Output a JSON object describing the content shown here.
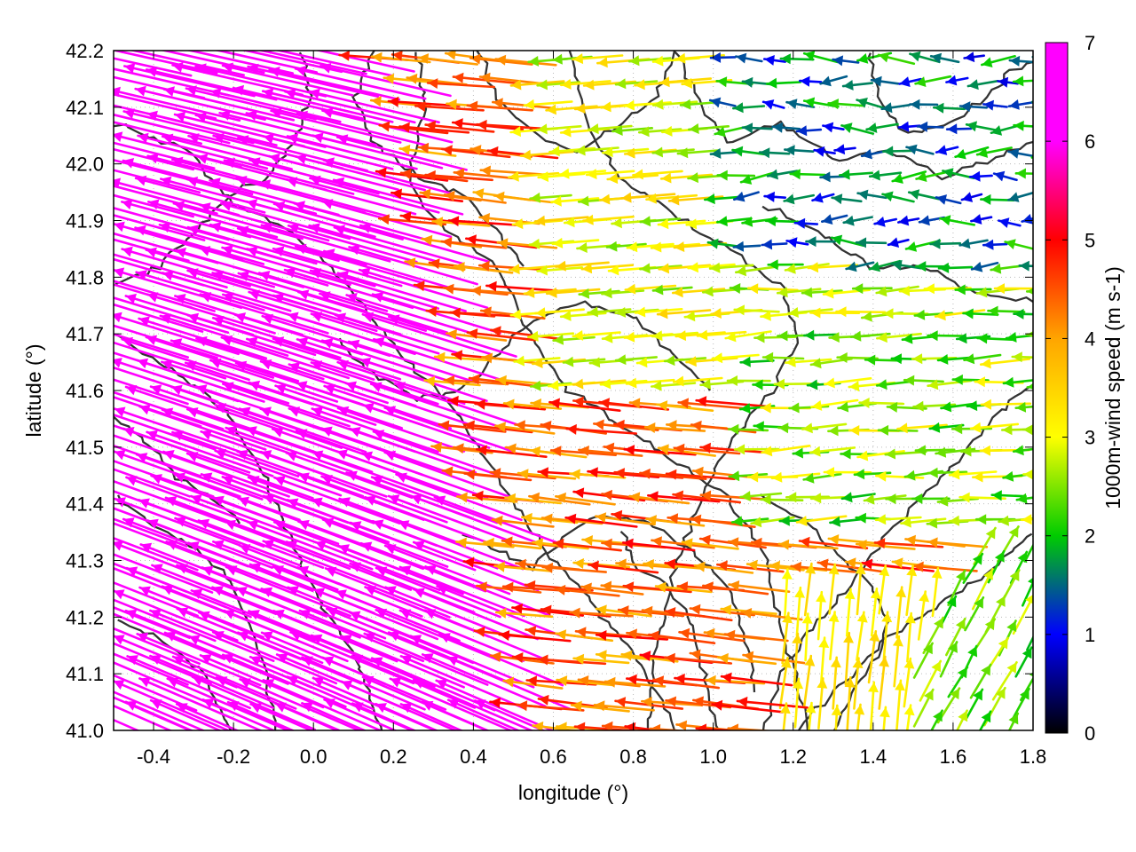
{
  "chart_data": {
    "type": "vector-field",
    "xlabel": "longitude (°)",
    "ylabel": "latitude (°)",
    "colorbar_label": "1000m-wind speed (m s-1)",
    "xlim": [
      -0.5,
      1.8
    ],
    "ylim": [
      41.0,
      42.2
    ],
    "colorbar_range": [
      0,
      7
    ],
    "x_ticks": [
      {
        "value": -0.4,
        "label": "-0.4"
      },
      {
        "value": -0.2,
        "label": "-0.2"
      },
      {
        "value": 0.0,
        "label": "0.0"
      },
      {
        "value": 0.2,
        "label": "0.2"
      },
      {
        "value": 0.4,
        "label": "0.4"
      },
      {
        "value": 0.6,
        "label": "0.6"
      },
      {
        "value": 0.8,
        "label": "0.8"
      },
      {
        "value": 1.0,
        "label": "1.0"
      },
      {
        "value": 1.2,
        "label": "1.2"
      },
      {
        "value": 1.4,
        "label": "1.4"
      },
      {
        "value": 1.6,
        "label": "1.6"
      },
      {
        "value": 1.8,
        "label": "1.8"
      }
    ],
    "y_ticks": [
      {
        "value": 41.0,
        "label": "41.0"
      },
      {
        "value": 41.1,
        "label": "41.1"
      },
      {
        "value": 41.2,
        "label": "41.2"
      },
      {
        "value": 41.3,
        "label": "41.3"
      },
      {
        "value": 41.4,
        "label": "41.4"
      },
      {
        "value": 41.5,
        "label": "41.5"
      },
      {
        "value": 41.6,
        "label": "41.6"
      },
      {
        "value": 41.7,
        "label": "41.7"
      },
      {
        "value": 41.8,
        "label": "41.8"
      },
      {
        "value": 41.9,
        "label": "41.9"
      },
      {
        "value": 42.0,
        "label": "42.0"
      },
      {
        "value": 42.1,
        "label": "42.1"
      },
      {
        "value": 42.2,
        "label": "42.2"
      }
    ],
    "colorbar_ticks": [
      {
        "value": 0,
        "label": "0"
      },
      {
        "value": 1,
        "label": "1"
      },
      {
        "value": 2,
        "label": "2"
      },
      {
        "value": 3,
        "label": "3"
      },
      {
        "value": 4,
        "label": "4"
      },
      {
        "value": 5,
        "label": "5"
      },
      {
        "value": 6,
        "label": "6"
      },
      {
        "value": 7,
        "label": "7"
      }
    ],
    "colormap": [
      "#000000",
      "#0000ff",
      "#00cc00",
      "#ffff00",
      "#ffa500",
      "#ff0000",
      "#ff00ff"
    ],
    "contour_color": "#333333",
    "grid": true,
    "wind_regions": [
      {
        "area": "west of ~0.4° (most latitudes)",
        "speed": 7,
        "direction": "from east-southeast"
      },
      {
        "area": "0.3°–1.0°, 41.4°–42.1°",
        "speed": 5,
        "direction": "from east"
      },
      {
        "area": "1.0°–1.8°, 41.6°–42.2°",
        "speed": 2,
        "direction": "from east, variable"
      },
      {
        "area": "1.1°–1.8°, 41.0°–41.3°",
        "speed": 3.5,
        "direction": "from south / southwest"
      }
    ]
  }
}
